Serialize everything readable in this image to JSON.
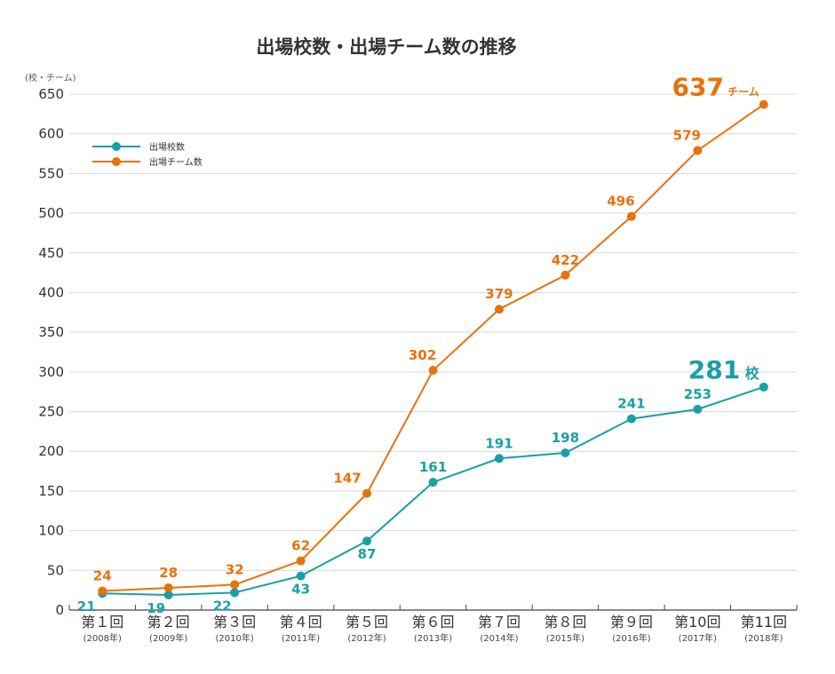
{
  "chart_data": {
    "type": "line",
    "title": "出場校数・出場チーム数の推移",
    "ylabel": "(校・チーム)",
    "ylim": [
      0,
      650
    ],
    "yticks": [
      0,
      50,
      100,
      150,
      200,
      250,
      300,
      350,
      400,
      450,
      500,
      550,
      600,
      650
    ],
    "grid": true,
    "legend_position": "top-left",
    "categories": [
      "第１回",
      "第２回",
      "第３回",
      "第４回",
      "第５回",
      "第６回",
      "第７回",
      "第８回",
      "第９回",
      "第10回",
      "第11回"
    ],
    "category_years": [
      "(2008年)",
      "(2009年)",
      "(2010年)",
      "(2011年)",
      "(2012年)",
      "(2013年)",
      "(2014年)",
      "(2015年)",
      "(2016年)",
      "(2017年)",
      "(2018年)"
    ],
    "series": [
      {
        "name": "出場校数",
        "color": "#1a9fa8",
        "values": [
          21,
          19,
          22,
          43,
          87,
          161,
          191,
          198,
          241,
          253,
          281
        ],
        "final_label": "281",
        "final_unit": "校"
      },
      {
        "name": "出場チーム数",
        "color": "#e8720c",
        "values": [
          24,
          28,
          32,
          62,
          147,
          302,
          379,
          422,
          496,
          579,
          637
        ],
        "final_label": "637",
        "final_unit": "チーム"
      }
    ]
  }
}
